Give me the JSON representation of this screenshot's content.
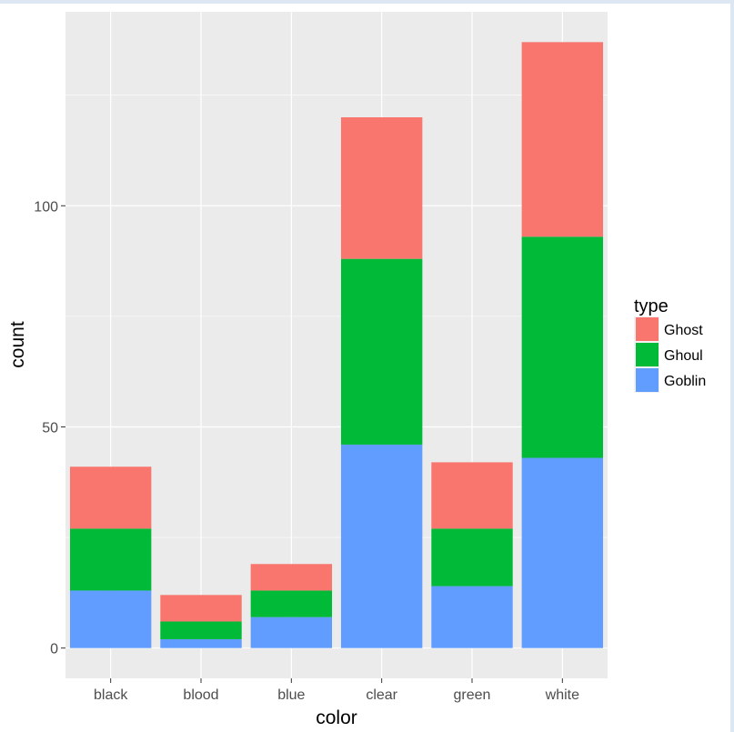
{
  "chart_data": {
    "type": "bar",
    "stacked": true,
    "title": "",
    "xlabel": "color",
    "ylabel": "count",
    "categories": [
      "black",
      "blood",
      "blue",
      "clear",
      "green",
      "white"
    ],
    "series": [
      {
        "name": "Goblin",
        "color": "#619CFF",
        "values": [
          13,
          2,
          7,
          46,
          14,
          43
        ]
      },
      {
        "name": "Ghoul",
        "color": "#00BA38",
        "values": [
          14,
          4,
          6,
          42,
          13,
          50
        ]
      },
      {
        "name": "Ghost",
        "color": "#F8766D",
        "values": [
          14,
          6,
          6,
          32,
          15,
          44
        ]
      }
    ],
    "ylim": [
      -6.85,
      143.85
    ],
    "y_ticks": [
      0,
      50,
      100
    ],
    "y_tick_labels": [
      "0",
      "50",
      "100"
    ],
    "legend": {
      "title": "type",
      "position": "right",
      "entries": [
        {
          "label": "Ghost",
          "color": "#F8766D"
        },
        {
          "label": "Ghoul",
          "color": "#00BA38"
        },
        {
          "label": "Goblin",
          "color": "#619CFF"
        }
      ]
    },
    "grid": true,
    "panel_background": "#EBEBEB",
    "grid_color": "#FFFFFF"
  }
}
